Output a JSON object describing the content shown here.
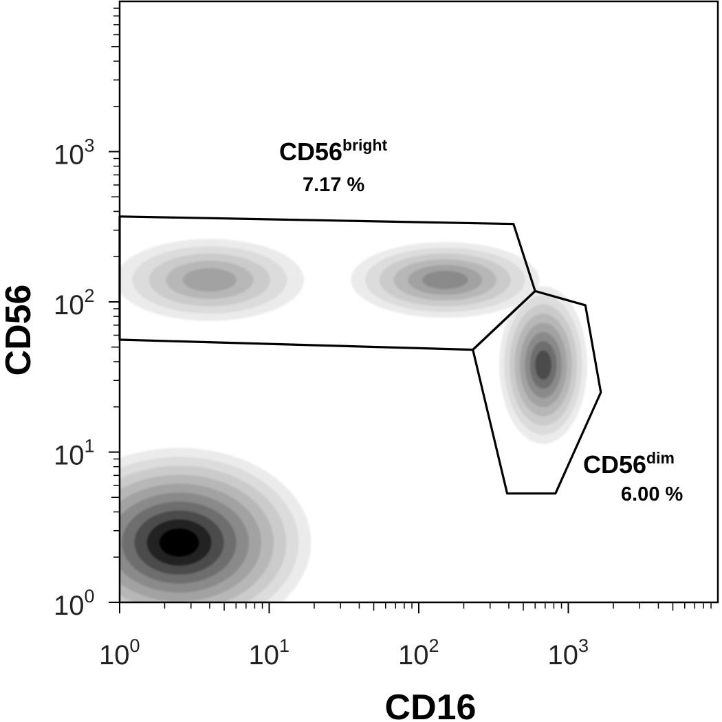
{
  "chart_data": {
    "type": "density-contour",
    "xlabel": "CD16",
    "ylabel": "CD56",
    "x_scale": "log",
    "y_scale": "log",
    "xlim": [
      1,
      10000
    ],
    "ylim": [
      1,
      10000
    ],
    "x_ticks": [
      {
        "base": "10",
        "exp": "0",
        "value": 1
      },
      {
        "base": "10",
        "exp": "1",
        "value": 10
      },
      {
        "base": "10",
        "exp": "2",
        "value": 100
      },
      {
        "base": "10",
        "exp": "3",
        "value": 1000
      }
    ],
    "y_ticks": [
      {
        "base": "10",
        "exp": "0",
        "value": 1
      },
      {
        "base": "10",
        "exp": "1",
        "value": 10
      },
      {
        "base": "10",
        "exp": "2",
        "value": 100
      },
      {
        "base": "10",
        "exp": "3",
        "value": 1000
      }
    ],
    "populations": [
      {
        "id": "negative",
        "center": [
          2.5,
          2.5
        ],
        "spread": [
          0.42,
          0.3
        ],
        "peak": 1.0
      },
      {
        "id": "bright-left",
        "center": [
          4,
          140
        ],
        "spread": [
          0.3,
          0.13
        ],
        "peak": 0.45
      },
      {
        "id": "bright-right",
        "center": [
          150,
          140
        ],
        "spread": [
          0.3,
          0.12
        ],
        "peak": 0.5
      },
      {
        "id": "dim",
        "center": [
          680,
          38
        ],
        "spread": [
          0.14,
          0.25
        ],
        "peak": 0.65
      }
    ],
    "gates": [
      {
        "id": "cd56-bright",
        "name": "CD56",
        "superscript": "bright",
        "percent": "7.17 %",
        "vertices": [
          [
            1,
            370
          ],
          [
            430,
            330
          ],
          [
            600,
            118
          ],
          [
            230,
            48
          ],
          [
            1,
            56
          ]
        ]
      },
      {
        "id": "cd56-dim",
        "name": "CD56",
        "superscript": "dim",
        "percent": "6.00 %",
        "vertices": [
          [
            600,
            118
          ],
          [
            1300,
            95
          ],
          [
            1650,
            25
          ],
          [
            820,
            5.3
          ],
          [
            390,
            5.3
          ],
          [
            230,
            48
          ]
        ]
      }
    ]
  }
}
